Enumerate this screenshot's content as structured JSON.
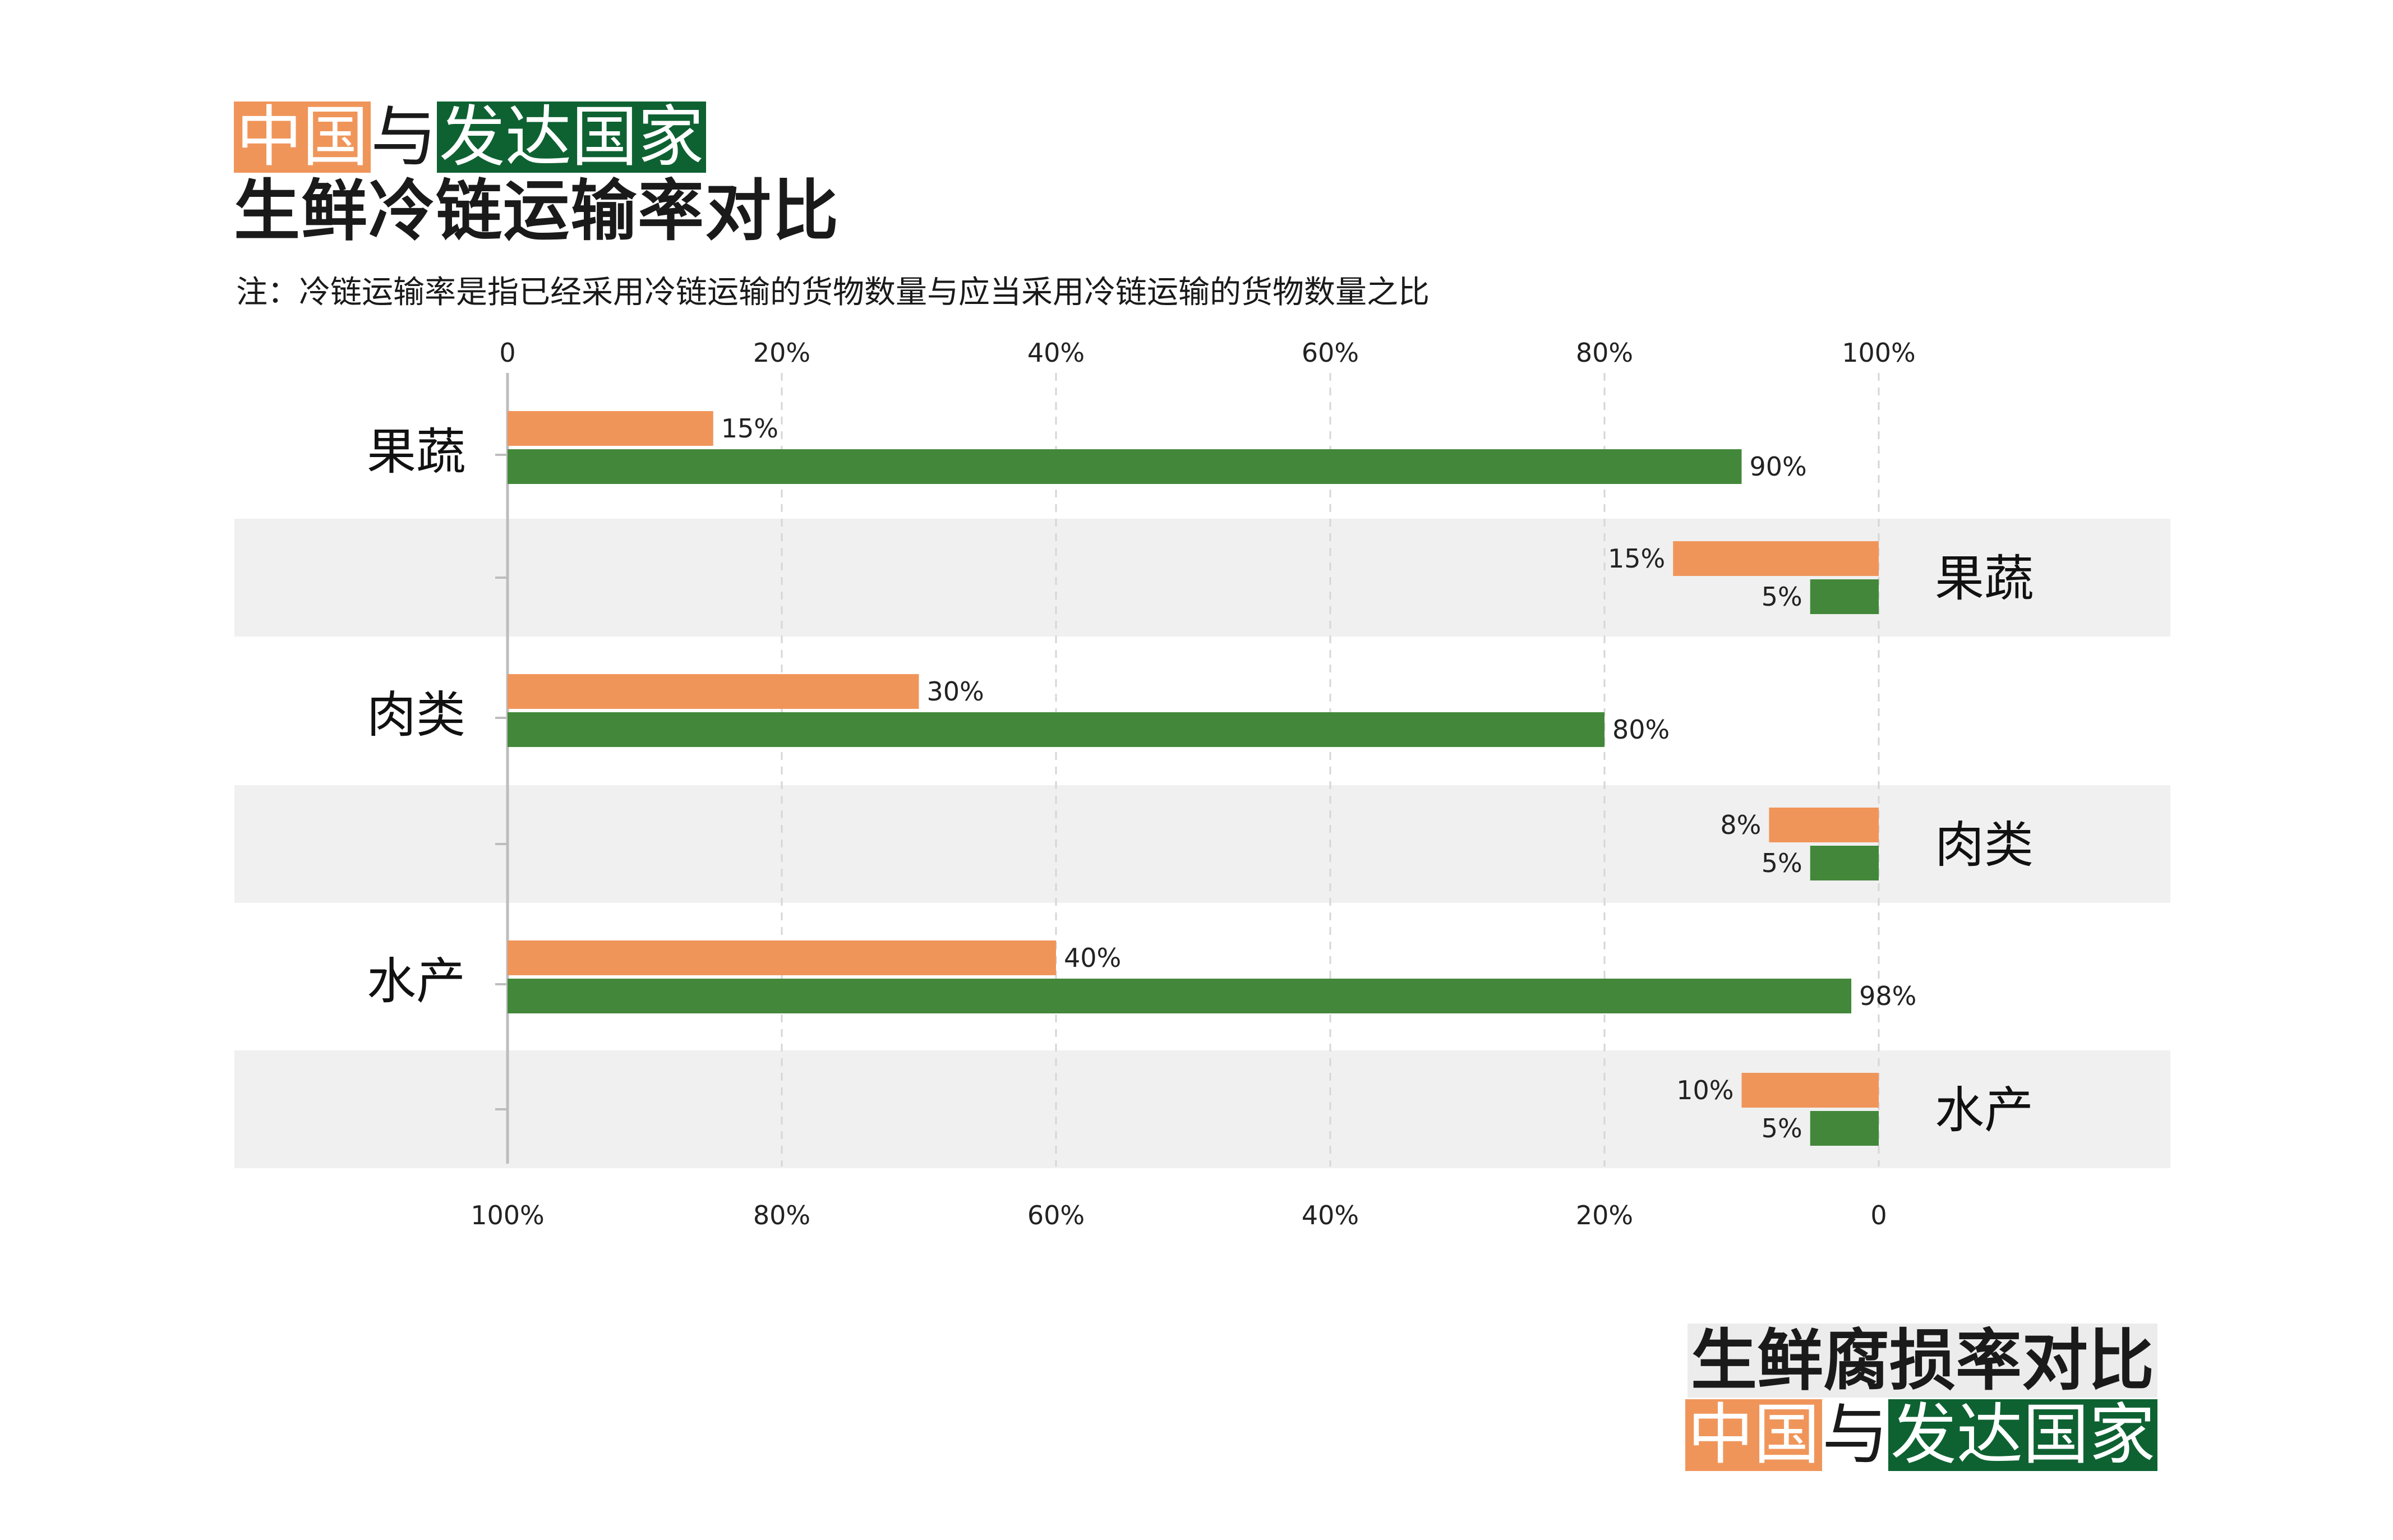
{
  "colors": {
    "china": "#F0955A",
    "developed": "#43883A",
    "dark_green": "#0E6232",
    "band": "#F0F0F0",
    "axis": "#BDBDBD"
  },
  "top_title": {
    "china": "中国",
    "connector": "与",
    "developed": "发达国家",
    "line2": "生鲜冷链运输率对比"
  },
  "note": "注：冷链运输率是指已经采用冷链运输的货物数量与应当采用冷链运输的货物数量之比",
  "bottom_title": {
    "line1": "生鲜腐损率对比",
    "china": "中国",
    "connector": "与",
    "developed": "发达国家"
  },
  "chart_data": [
    {
      "type": "bar",
      "orientation": "horizontal",
      "metric": "冷链运输率",
      "categories": [
        "果蔬",
        "肉类",
        "水产"
      ],
      "series": [
        {
          "name": "中国",
          "values": [
            15,
            30,
            40
          ]
        },
        {
          "name": "发达国家",
          "values": [
            90,
            80,
            98
          ]
        }
      ],
      "value_labels": [
        [
          "15%",
          "30%",
          "40%"
        ],
        [
          "90%",
          "80%",
          "98%"
        ]
      ],
      "xlim": [
        0,
        100
      ],
      "ticks": [
        "0",
        "20%",
        "40%",
        "60%",
        "80%",
        "100%"
      ],
      "tick_position": "top",
      "grid": "dashed vertical"
    },
    {
      "type": "bar",
      "orientation": "horizontal",
      "direction": "right-to-left",
      "metric": "腐损率",
      "categories": [
        "果蔬",
        "肉类",
        "水产"
      ],
      "series": [
        {
          "name": "中国",
          "values": [
            15,
            8,
            10
          ]
        },
        {
          "name": "发达国家",
          "values": [
            5,
            5,
            5
          ]
        }
      ],
      "value_labels": [
        [
          "15%",
          "8%",
          "10%"
        ],
        [
          "5%",
          "5%",
          "5%"
        ]
      ],
      "xlim": [
        100,
        0
      ],
      "ticks": [
        "100%",
        "80%",
        "60%",
        "40%",
        "20%",
        "0"
      ],
      "tick_position": "bottom",
      "grid": "dashed vertical"
    }
  ]
}
